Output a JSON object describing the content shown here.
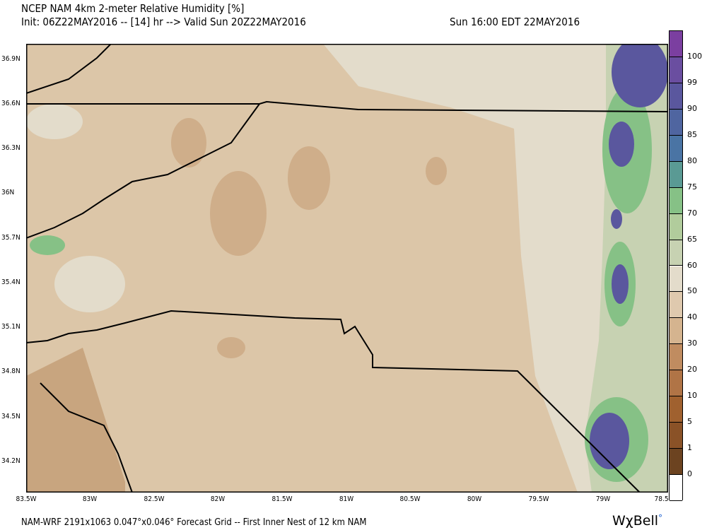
{
  "header": {
    "title": "NCEP NAM 4km 2-meter Relative Humidity [%]",
    "init": "Init: 06Z22MAY2016 -- [14] hr --> Valid Sun 20Z22MAY2016",
    "valid_local": "Sun 16:00 EDT 22MAY2016"
  },
  "map": {
    "lat_labels": [
      "36.9N",
      "36.6N",
      "36.3N",
      "36N",
      "35.7N",
      "35.4N",
      "35.1N",
      "34.8N",
      "34.5N",
      "34.2N"
    ],
    "lon_labels": [
      "83.5W",
      "83W",
      "82.5W",
      "82W",
      "81.5W",
      "81W",
      "80.5W",
      "80W",
      "79.5W",
      "79W",
      "78.5W"
    ]
  },
  "colorbar": {
    "labels": [
      "100",
      "99",
      "90",
      "85",
      "80",
      "75",
      "70",
      "65",
      "60",
      "50",
      "40",
      "30",
      "20",
      "10",
      "5",
      "1",
      "0"
    ],
    "colors": [
      "#7b3fa0",
      "#6a4ea0",
      "#5a579e",
      "#4f65a0",
      "#4a74a4",
      "#5a9a94",
      "#86c186",
      "#b1cc9c",
      "#c7d2b2",
      "#e3dccb",
      "#dfc9ae",
      "#d5b48f",
      "#c08c60",
      "#b07446",
      "#a0612f",
      "#8a5227",
      "#6c4320",
      "#ffffff"
    ]
  },
  "footer": {
    "text": "NAM-WRF 2191x1063 0.047°x0.046° Forecast Grid -- First Inner Nest of 12 km NAM",
    "logo": "WχBell"
  }
}
